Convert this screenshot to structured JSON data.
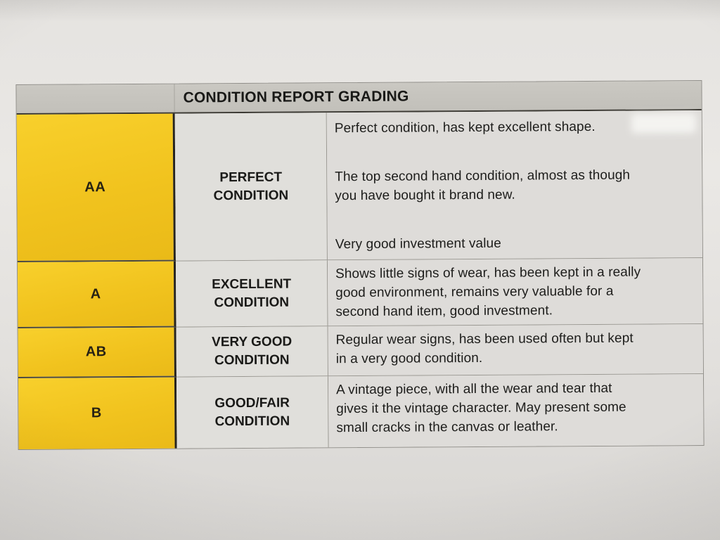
{
  "title": "CONDITION REPORT GRADING",
  "colors": {
    "grade_column_yellow": "#f1c31e",
    "header_gray": "#c2c0ba",
    "cell_gray": "#dedcd9",
    "text": "#1c1c1a",
    "dark_border": "#26241f"
  },
  "rows": [
    {
      "grade": "AA",
      "condition": [
        "PERFECT",
        "CONDITION"
      ],
      "paragraphs": [
        [
          "Perfect condition, has kept excellent shape."
        ],
        [
          "The top second hand condition, almost as though",
          "you have bought it brand new."
        ],
        [
          "Very good investment value"
        ]
      ]
    },
    {
      "grade": "A",
      "condition": [
        "EXCELLENT",
        "CONDITION"
      ],
      "paragraphs": [
        [
          "Shows little signs of wear, has been kept in a really",
          "good environment, remains very valuable for a",
          "second hand item, good investment."
        ]
      ]
    },
    {
      "grade": "AB",
      "condition": [
        "VERY GOOD",
        "CONDITION"
      ],
      "paragraphs": [
        [
          "Regular wear signs, has been used often but kept",
          "in a very good condition."
        ]
      ]
    },
    {
      "grade": "B",
      "condition": [
        "GOOD/FAIR",
        "CONDITION"
      ],
      "paragraphs": [
        [
          "A vintage piece, with all the wear and tear that",
          "gives it the vintage character. May present some",
          "small cracks in the canvas or leather."
        ]
      ]
    }
  ]
}
